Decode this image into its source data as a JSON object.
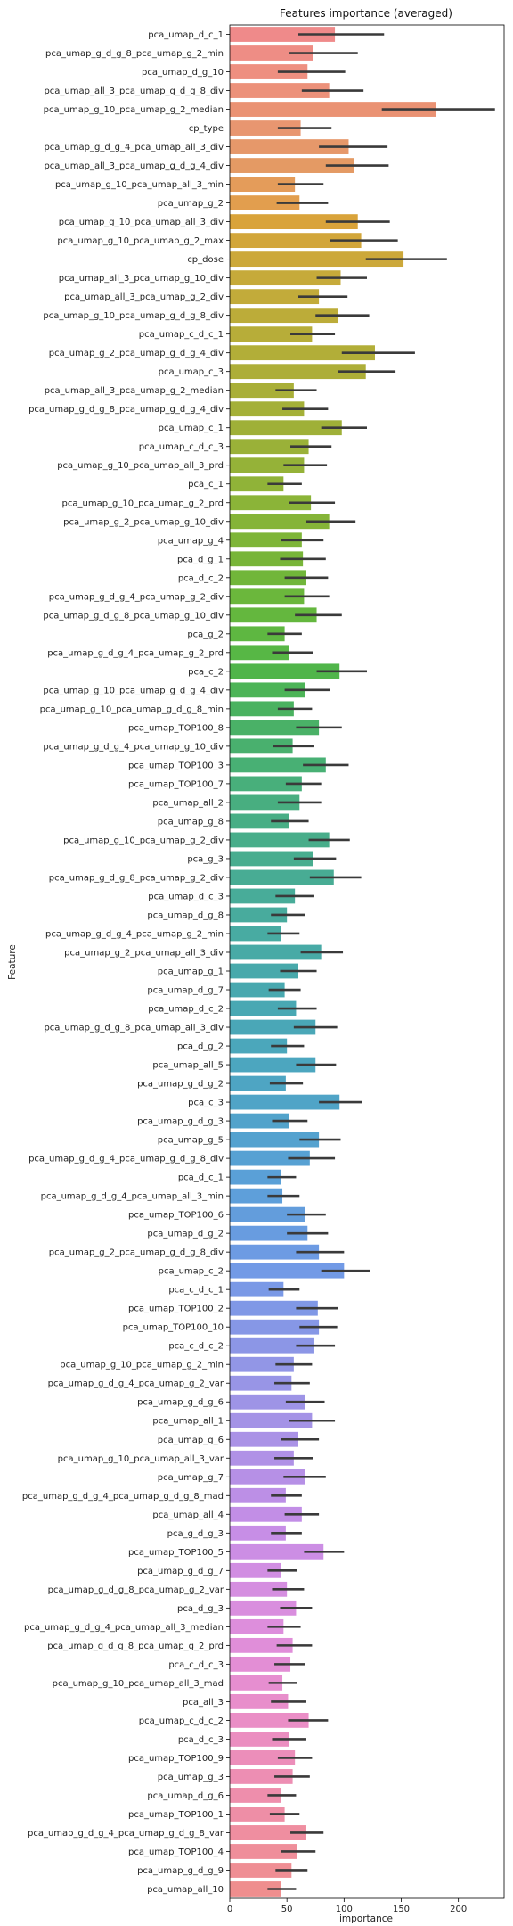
{
  "chart_data": {
    "type": "bar",
    "orientation": "horizontal",
    "title": "Features importance (averaged)",
    "xlabel": "importance",
    "ylabel": "Feature",
    "xlim": [
      0,
      240
    ],
    "xticks": [
      0,
      50,
      100,
      150,
      200
    ],
    "grid": false,
    "legend": "none",
    "error_bar_color": "#3a3a3a",
    "categories": [
      "pca_umap_d_c_1",
      "pca_umap_g_d_g_8_pca_umap_g_2_min",
      "pca_umap_d_g_10",
      "pca_umap_all_3_pca_umap_g_d_g_8_div",
      "pca_umap_g_10_pca_umap_g_2_median",
      "cp_type",
      "pca_umap_g_d_g_4_pca_umap_all_3_div",
      "pca_umap_all_3_pca_umap_g_d_g_4_div",
      "pca_umap_g_10_pca_umap_all_3_min",
      "pca_umap_g_2",
      "pca_umap_g_10_pca_umap_all_3_div",
      "pca_umap_g_10_pca_umap_g_2_max",
      "cp_dose",
      "pca_umap_all_3_pca_umap_g_10_div",
      "pca_umap_all_3_pca_umap_g_2_div",
      "pca_umap_g_10_pca_umap_g_d_g_8_div",
      "pca_umap_c_d_c_1",
      "pca_umap_g_2_pca_umap_g_d_g_4_div",
      "pca_umap_c_3",
      "pca_umap_all_3_pca_umap_g_2_median",
      "pca_umap_g_d_g_8_pca_umap_g_d_g_4_div",
      "pca_umap_c_1",
      "pca_umap_c_d_c_3",
      "pca_umap_g_10_pca_umap_all_3_prd",
      "pca_c_1",
      "pca_umap_g_10_pca_umap_g_2_prd",
      "pca_umap_g_2_pca_umap_g_10_div",
      "pca_umap_g_4",
      "pca_d_g_1",
      "pca_d_c_2",
      "pca_umap_g_d_g_4_pca_umap_g_2_div",
      "pca_umap_g_d_g_8_pca_umap_g_10_div",
      "pca_g_2",
      "pca_umap_g_d_g_4_pca_umap_g_2_prd",
      "pca_c_2",
      "pca_umap_g_10_pca_umap_g_d_g_4_div",
      "pca_umap_g_10_pca_umap_g_d_g_8_min",
      "pca_umap_TOP100_8",
      "pca_umap_g_d_g_4_pca_umap_g_10_div",
      "pca_umap_TOP100_3",
      "pca_umap_TOP100_7",
      "pca_umap_all_2",
      "pca_umap_g_8",
      "pca_umap_g_10_pca_umap_g_2_div",
      "pca_g_3",
      "pca_umap_g_d_g_8_pca_umap_g_2_div",
      "pca_umap_d_c_3",
      "pca_umap_d_g_8",
      "pca_umap_g_d_g_4_pca_umap_g_2_min",
      "pca_umap_g_2_pca_umap_all_3_div",
      "pca_umap_g_1",
      "pca_umap_d_g_7",
      "pca_umap_d_c_2",
      "pca_umap_g_d_g_8_pca_umap_all_3_div",
      "pca_d_g_2",
      "pca_umap_all_5",
      "pca_umap_g_d_g_2",
      "pca_c_3",
      "pca_umap_g_d_g_3",
      "pca_umap_g_5",
      "pca_umap_g_d_g_4_pca_umap_g_d_g_8_div",
      "pca_d_c_1",
      "pca_umap_g_d_g_4_pca_umap_all_3_min",
      "pca_umap_TOP100_6",
      "pca_umap_d_g_2",
      "pca_umap_g_2_pca_umap_g_d_g_8_div",
      "pca_umap_c_2",
      "pca_c_d_c_1",
      "pca_umap_TOP100_2",
      "pca_umap_TOP100_10",
      "pca_c_d_c_2",
      "pca_umap_g_10_pca_umap_g_2_min",
      "pca_umap_g_d_g_4_pca_umap_g_2_var",
      "pca_umap_g_d_g_6",
      "pca_umap_all_1",
      "pca_umap_g_6",
      "pca_umap_g_10_pca_umap_all_3_var",
      "pca_umap_g_7",
      "pca_umap_g_d_g_4_pca_umap_g_d_g_8_mad",
      "pca_umap_all_4",
      "pca_g_d_g_3",
      "pca_umap_TOP100_5",
      "pca_umap_g_d_g_7",
      "pca_umap_g_d_g_8_pca_umap_g_2_var",
      "pca_d_g_3",
      "pca_umap_g_d_g_4_pca_umap_all_3_median",
      "pca_umap_g_d_g_8_pca_umap_g_2_prd",
      "pca_c_d_c_3",
      "pca_umap_g_10_pca_umap_all_3_mad",
      "pca_all_3",
      "pca_umap_c_d_c_2",
      "pca_d_c_3",
      "pca_umap_TOP100_9",
      "pca_umap_g_3",
      "pca_umap_d_g_6",
      "pca_umap_TOP100_1",
      "pca_umap_g_d_g_4_pca_umap_g_d_g_8_var",
      "pca_umap_TOP100_4",
      "pca_umap_g_d_g_9",
      "pca_umap_all_10"
    ],
    "values": [
      92,
      73,
      68,
      87,
      180,
      62,
      104,
      109,
      57,
      61,
      112,
      115,
      152,
      97,
      78,
      95,
      72,
      127,
      119,
      56,
      65,
      98,
      69,
      65,
      47,
      71,
      87,
      63,
      64,
      67,
      65,
      76,
      48,
      52,
      96,
      66,
      56,
      78,
      55,
      84,
      63,
      61,
      52,
      87,
      73,
      91,
      57,
      50,
      45,
      80,
      60,
      48,
      58,
      75,
      50,
      75,
      49,
      96,
      52,
      78,
      70,
      45,
      46,
      66,
      68,
      78,
      100,
      47,
      77,
      78,
      74,
      56,
      54,
      66,
      72,
      60,
      56,
      66,
      49,
      63,
      49,
      82,
      45,
      50,
      58,
      47,
      55,
      53,
      46,
      51,
      69,
      52,
      57,
      55,
      45,
      48,
      67,
      59,
      54,
      45
    ],
    "errors": [
      [
        60,
        135
      ],
      [
        52,
        112
      ],
      [
        42,
        101
      ],
      [
        63,
        117
      ],
      [
        133,
        232
      ],
      [
        42,
        89
      ],
      [
        78,
        138
      ],
      [
        84,
        139
      ],
      [
        42,
        82
      ],
      [
        41,
        86
      ],
      [
        84,
        140
      ],
      [
        88,
        147
      ],
      [
        119,
        190
      ],
      [
        76,
        120
      ],
      [
        60,
        103
      ],
      [
        75,
        122
      ],
      [
        53,
        92
      ],
      [
        98,
        162
      ],
      [
        95,
        145
      ],
      [
        40,
        76
      ],
      [
        46,
        86
      ],
      [
        80,
        120
      ],
      [
        53,
        89
      ],
      [
        47,
        85
      ],
      [
        33,
        63
      ],
      [
        52,
        92
      ],
      [
        67,
        110
      ],
      [
        45,
        82
      ],
      [
        44,
        84
      ],
      [
        48,
        86
      ],
      [
        48,
        87
      ],
      [
        57,
        98
      ],
      [
        33,
        63
      ],
      [
        37,
        73
      ],
      [
        76,
        120
      ],
      [
        48,
        88
      ],
      [
        42,
        72
      ],
      [
        58,
        98
      ],
      [
        38,
        74
      ],
      [
        64,
        104
      ],
      [
        49,
        80
      ],
      [
        42,
        80
      ],
      [
        36,
        69
      ],
      [
        69,
        105
      ],
      [
        56,
        93
      ],
      [
        70,
        115
      ],
      [
        40,
        74
      ],
      [
        36,
        66
      ],
      [
        33,
        61
      ],
      [
        62,
        99
      ],
      [
        44,
        76
      ],
      [
        34,
        62
      ],
      [
        42,
        76
      ],
      [
        56,
        94
      ],
      [
        36,
        65
      ],
      [
        58,
        93
      ],
      [
        35,
        64
      ],
      [
        78,
        116
      ],
      [
        37,
        68
      ],
      [
        61,
        97
      ],
      [
        51,
        92
      ],
      [
        33,
        58
      ],
      [
        33,
        61
      ],
      [
        50,
        84
      ],
      [
        50,
        86
      ],
      [
        58,
        100
      ],
      [
        80,
        123
      ],
      [
        34,
        61
      ],
      [
        58,
        95
      ],
      [
        61,
        94
      ],
      [
        58,
        92
      ],
      [
        40,
        72
      ],
      [
        39,
        70
      ],
      [
        49,
        83
      ],
      [
        52,
        92
      ],
      [
        45,
        78
      ],
      [
        39,
        73
      ],
      [
        47,
        84
      ],
      [
        36,
        63
      ],
      [
        48,
        78
      ],
      [
        36,
        63
      ],
      [
        65,
        100
      ],
      [
        33,
        59
      ],
      [
        37,
        65
      ],
      [
        44,
        72
      ],
      [
        33,
        62
      ],
      [
        41,
        72
      ],
      [
        39,
        66
      ],
      [
        34,
        59
      ],
      [
        36,
        67
      ],
      [
        51,
        86
      ],
      [
        37,
        67
      ],
      [
        42,
        72
      ],
      [
        39,
        70
      ],
      [
        33,
        58
      ],
      [
        35,
        61
      ],
      [
        53,
        82
      ],
      [
        45,
        75
      ],
      [
        40,
        68
      ],
      [
        33,
        58
      ]
    ],
    "colors": [
      "#ef8a8a",
      "#ee8d85",
      "#ee8f80",
      "#ec917a",
      "#ea9273",
      "#e89670",
      "#e6986a",
      "#e49a64",
      "#e49c5a",
      "#e29e4e",
      "#d9a33a",
      "#d2a63a",
      "#cca83a",
      "#c6aa3a",
      "#c2ab3a",
      "#bcac39",
      "#b7ad39",
      "#b2ae38",
      "#adae38",
      "#a9af38",
      "#a4b038",
      "#9fb038",
      "#9ab138",
      "#95b238",
      "#90b338",
      "#8bb438",
      "#85b438",
      "#7eb538",
      "#78b539",
      "#71b63a",
      "#6bb73c",
      "#64b73e",
      "#5eb741",
      "#57b745",
      "#50b54a",
      "#4cb457",
      "#4ab260",
      "#4ab167",
      "#49b06e",
      "#48b074",
      "#48af7b",
      "#48ae80",
      "#48ae85",
      "#48ad8a",
      "#48ad8f",
      "#48ac94",
      "#48ac99",
      "#48ab9d",
      "#48aba2",
      "#48aaa6",
      "#48a9ab",
      "#48a8af",
      "#49a8b3",
      "#4aa7b7",
      "#4ba7bb",
      "#4ca6bf",
      "#4ea5c3",
      "#50a4c7",
      "#52a3cb",
      "#54a2cf",
      "#57a1d3",
      "#5aa0d7",
      "#5e9fda",
      "#639ddc",
      "#689ce0",
      "#6d9be3",
      "#729ae6",
      "#7a99e6",
      "#8098e6",
      "#8697e6",
      "#8c96e6",
      "#9296e6",
      "#9895e6",
      "#9e94e6",
      "#a493e6",
      "#aa92e6",
      "#b091e6",
      "#b690e6",
      "#bc8fe6",
      "#c28ee6",
      "#c78ee6",
      "#cc8ee4",
      "#d18ee2",
      "#d58ee0",
      "#d98ede",
      "#dd8edc",
      "#e08ed9",
      "#e38ed5",
      "#e68ed0",
      "#e88ecb",
      "#ea8ec6",
      "#eb8ec0",
      "#ec8eba",
      "#ed8eb3",
      "#ee8eac",
      "#ee8ea6",
      "#ef8ea0",
      "#ef8e9a",
      "#ef8e94",
      "#ef8e8e"
    ]
  }
}
